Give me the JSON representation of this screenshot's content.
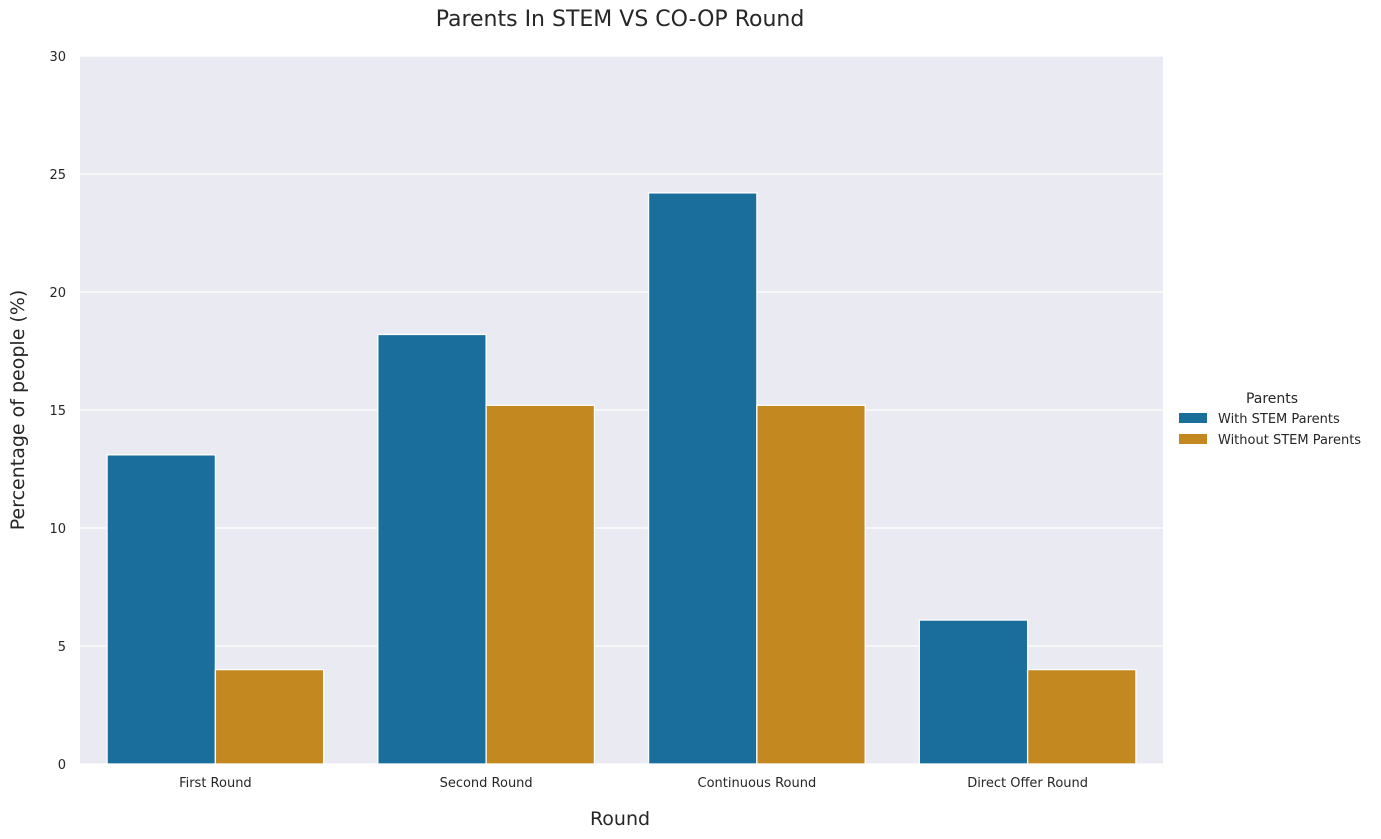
{
  "chart_data": {
    "type": "bar",
    "title": "Parents In STEM VS CO-OP Round",
    "xlabel": "Round",
    "ylabel": "Percentage of people (%)",
    "categories": [
      "First Round",
      "Second Round",
      "Continuous Round",
      "Direct Offer Round"
    ],
    "series": [
      {
        "name": "With STEM Parents",
        "values": [
          13.1,
          18.2,
          24.2,
          6.1
        ],
        "color": "#1a6e9c"
      },
      {
        "name": "Without STEM Parents",
        "values": [
          4.0,
          15.2,
          15.2,
          4.0
        ],
        "color": "#c38820"
      }
    ],
    "ylim": [
      0,
      30
    ],
    "yticks": [
      0,
      5,
      10,
      15,
      20,
      25,
      30
    ],
    "grid": true,
    "legend": {
      "title": "Parents",
      "placement": "right"
    },
    "background_color": "#eaeaf2"
  }
}
